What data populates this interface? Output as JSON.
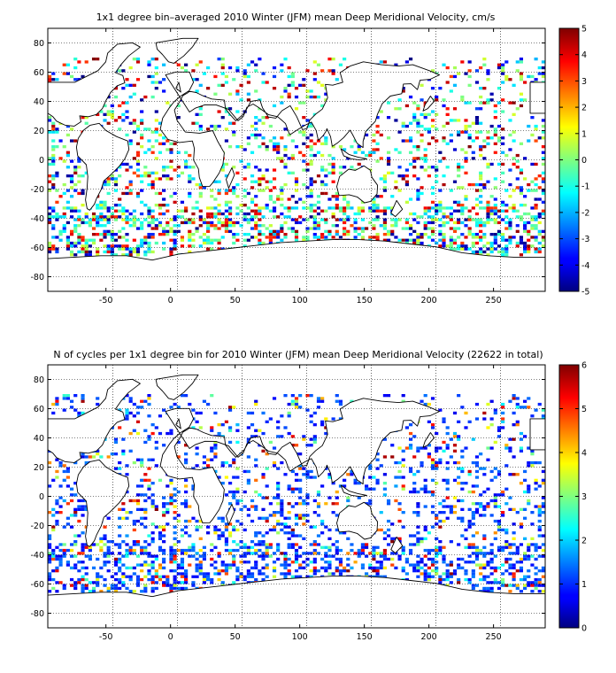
{
  "chart_data": [
    {
      "type": "heatmap",
      "title": "1x1 degree bin–averaged 2010 Winter (JFM) mean Deep Meridional Velocity, cm/s",
      "xlabel": "",
      "ylabel": "",
      "xlim": [
        -95,
        290
      ],
      "ylim": [
        -90,
        90
      ],
      "x_ticks": [
        -50,
        0,
        50,
        100,
        150,
        200,
        250
      ],
      "y_ticks": [
        -80,
        -60,
        -40,
        -20,
        0,
        20,
        40,
        60,
        80
      ],
      "grid": true,
      "colormap": "jet",
      "colorbar": {
        "min": -5,
        "max": 5,
        "ticks": [
          -5,
          -4,
          -3,
          -2,
          -1,
          0,
          1,
          2,
          3,
          4,
          5
        ]
      },
      "dominant_colors": [
        "#00007f",
        "#0000ff",
        "#00ffff",
        "#7fff7f",
        "#ffff00",
        "#ff0000",
        "#7f0000"
      ]
    },
    {
      "type": "heatmap",
      "title": "N of cycles per 1x1 degree bin for 2010 Winter (JFM) mean Deep Meridional Velocity (22622 in total)",
      "xlabel": "",
      "ylabel": "",
      "xlim": [
        -95,
        290
      ],
      "ylim": [
        -90,
        90
      ],
      "x_ticks": [
        -50,
        0,
        50,
        100,
        150,
        200,
        250
      ],
      "y_ticks": [
        -80,
        -60,
        -40,
        -20,
        0,
        20,
        40,
        60,
        80
      ],
      "grid": true,
      "colormap": "jet",
      "colorbar": {
        "min": 0,
        "max": 6,
        "ticks": [
          0,
          1,
          2,
          3,
          4,
          5,
          6
        ]
      },
      "total_cycles": 22622
    }
  ]
}
